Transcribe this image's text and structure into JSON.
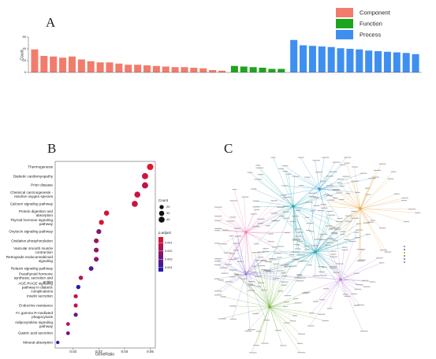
{
  "chart_data": [
    {
      "type": "bar",
      "panel_label": "A",
      "ylabel": "Count",
      "ylim": [
        0,
        60
      ],
      "yticks": [
        0,
        20,
        40,
        60
      ],
      "legend": "top-right",
      "series": [
        {
          "name": "Component",
          "color": "#f27c6c",
          "values": [
            39,
            28,
            27,
            25,
            27,
            22,
            19,
            17,
            17,
            15,
            13,
            13,
            12,
            11,
            10,
            9,
            9,
            8,
            7,
            4,
            3
          ]
        },
        {
          "name": "Function",
          "color": "#1ea51e",
          "values": [
            11,
            10,
            9,
            8,
            6,
            6
          ]
        },
        {
          "name": "Process",
          "color": "#3f8ff0",
          "values": [
            55,
            46,
            45,
            44,
            43,
            41,
            40,
            39,
            37,
            36,
            35,
            34,
            33,
            31
          ]
        }
      ]
    },
    {
      "type": "dot",
      "panel_label": "B",
      "xlabel": "GeneRatio",
      "xlim": [
        0.013,
        0.052
      ],
      "xticks": [
        0.02,
        0.03,
        0.04,
        0.05
      ],
      "categories": [
        "Thermogenesis",
        "Diabetic cardiomyopathy",
        "Prion disease",
        "Chemical carcinogenesis - reactive oxygen species",
        "Calcium signaling pathway",
        "Protein digestion and absorption",
        "Thyroid hormone signaling pathway",
        "Oxytocin signaling pathway",
        "Oxidative phosphorylation",
        "Vascular smooth muscle contraction",
        "Retrograde endocannabinoid signaling",
        "Relaxin signaling pathway",
        "Parathyroid hormone synthesis, secretion and action",
        "AGE-RAGE signaling pathway in diabetic complications",
        "Insulin secretion",
        "Endocrine resistance",
        "Fc gamma R-mediated phagocytosis",
        "Adipocytokine signaling pathway",
        "Gastric acid secretion",
        "Mineral absorption"
      ],
      "x": [
        0.05,
        0.048,
        0.048,
        0.045,
        0.044,
        0.033,
        0.031,
        0.03,
        0.029,
        0.029,
        0.029,
        0.027,
        0.023,
        0.022,
        0.021,
        0.021,
        0.021,
        0.018,
        0.018,
        0.014
      ],
      "sizes": [
        45,
        43,
        43,
        40,
        40,
        30,
        28,
        27,
        26,
        26,
        26,
        24,
        21,
        20,
        19,
        19,
        19,
        16,
        16,
        13
      ],
      "colors_by": [
        0.0003,
        0.0008,
        0.0012,
        0.0009,
        0.001,
        0.0007,
        0.0006,
        0.0025,
        0.002,
        0.0022,
        0.0021,
        0.0035,
        0.0013,
        0.0042,
        0.0012,
        0.0011,
        0.003,
        0.0014,
        0.0028,
        0.004
      ],
      "size_legend_title": "Count",
      "size_legend": [
        20,
        30,
        40
      ],
      "color_legend_title": "p.adjust",
      "color_lim": [
        0.0003,
        0.0045
      ],
      "color_ticks": [
        0.001,
        0.002,
        0.003,
        0.004
      ],
      "color_range": [
        "#e8132b",
        "#1d1ab8"
      ]
    },
    {
      "type": "network",
      "panel_label": "C"
    }
  ]
}
